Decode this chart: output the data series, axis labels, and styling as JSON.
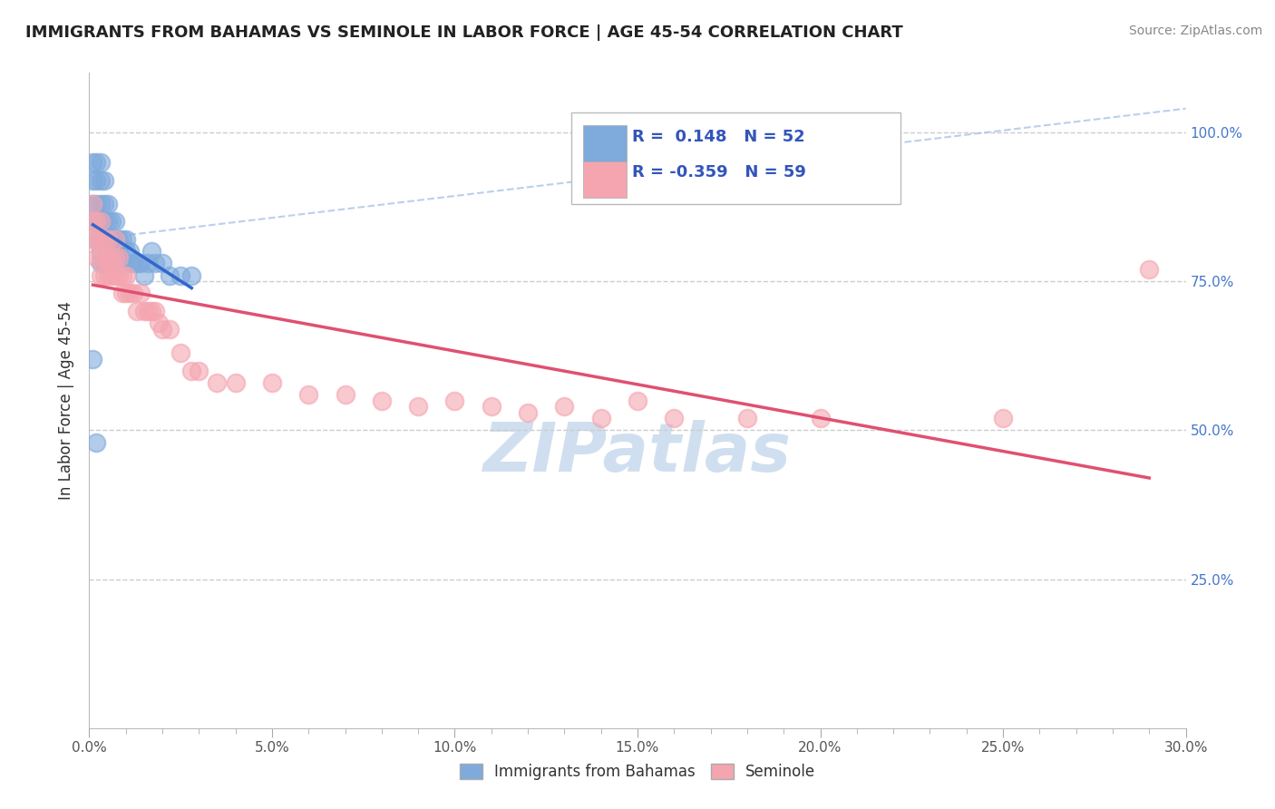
{
  "title": "IMMIGRANTS FROM BAHAMAS VS SEMINOLE IN LABOR FORCE | AGE 45-54 CORRELATION CHART",
  "source": "Source: ZipAtlas.com",
  "ylabel": "In Labor Force | Age 45-54",
  "xlim": [
    0.0,
    0.3
  ],
  "ylim": [
    0.0,
    1.1
  ],
  "xtick_labels": [
    "0.0%",
    "",
    "",
    "",
    "",
    "5.0%",
    "",
    "",
    "",
    "",
    "10.0%",
    "",
    "",
    "",
    "",
    "15.0%",
    "",
    "",
    "",
    "",
    "20.0%",
    "",
    "",
    "",
    "",
    "25.0%",
    "",
    "",
    "",
    "",
    "30.0%"
  ],
  "xtick_values": [
    0.0,
    0.01,
    0.02,
    0.03,
    0.04,
    0.05,
    0.06,
    0.07,
    0.08,
    0.09,
    0.1,
    0.11,
    0.12,
    0.13,
    0.14,
    0.15,
    0.16,
    0.17,
    0.18,
    0.19,
    0.2,
    0.21,
    0.22,
    0.23,
    0.24,
    0.25,
    0.26,
    0.27,
    0.28,
    0.29,
    0.3
  ],
  "ytick_labels_right": [
    "25.0%",
    "50.0%",
    "75.0%",
    "100.0%"
  ],
  "ytick_values_right": [
    0.25,
    0.5,
    0.75,
    1.0
  ],
  "R_blue": 0.148,
  "N_blue": 52,
  "R_pink": -0.359,
  "N_pink": 59,
  "blue_color": "#7faadc",
  "pink_color": "#f4a5b0",
  "trend_blue_color": "#3366cc",
  "trend_pink_color": "#e05070",
  "diag_line_color": "#aac4e8",
  "watermark": "ZIPatlas",
  "watermark_color": "#d0dff0",
  "legend_label_blue": "Immigrants from Bahamas",
  "legend_label_pink": "Seminole",
  "blue_x": [
    0.001,
    0.001,
    0.001,
    0.001,
    0.002,
    0.002,
    0.002,
    0.002,
    0.002,
    0.003,
    0.003,
    0.003,
    0.003,
    0.003,
    0.003,
    0.003,
    0.004,
    0.004,
    0.004,
    0.004,
    0.004,
    0.005,
    0.005,
    0.005,
    0.005,
    0.006,
    0.006,
    0.006,
    0.007,
    0.007,
    0.007,
    0.008,
    0.008,
    0.009,
    0.009,
    0.01,
    0.01,
    0.011,
    0.011,
    0.012,
    0.013,
    0.014,
    0.015,
    0.016,
    0.017,
    0.018,
    0.02,
    0.022,
    0.025,
    0.028,
    0.001,
    0.002
  ],
  "blue_y": [
    0.95,
    0.92,
    0.88,
    0.85,
    0.95,
    0.92,
    0.88,
    0.85,
    0.82,
    0.95,
    0.92,
    0.88,
    0.85,
    0.82,
    0.8,
    0.78,
    0.92,
    0.88,
    0.85,
    0.82,
    0.78,
    0.88,
    0.85,
    0.82,
    0.8,
    0.85,
    0.82,
    0.8,
    0.85,
    0.82,
    0.8,
    0.82,
    0.8,
    0.82,
    0.78,
    0.82,
    0.8,
    0.8,
    0.78,
    0.78,
    0.78,
    0.78,
    0.76,
    0.78,
    0.8,
    0.78,
    0.78,
    0.76,
    0.76,
    0.76,
    0.62,
    0.48
  ],
  "pink_x": [
    0.001,
    0.001,
    0.001,
    0.002,
    0.002,
    0.002,
    0.003,
    0.003,
    0.003,
    0.003,
    0.004,
    0.004,
    0.004,
    0.005,
    0.005,
    0.005,
    0.006,
    0.006,
    0.007,
    0.007,
    0.007,
    0.008,
    0.008,
    0.009,
    0.009,
    0.01,
    0.01,
    0.011,
    0.012,
    0.013,
    0.014,
    0.015,
    0.016,
    0.017,
    0.018,
    0.019,
    0.02,
    0.022,
    0.025,
    0.028,
    0.03,
    0.035,
    0.04,
    0.05,
    0.06,
    0.07,
    0.08,
    0.09,
    0.1,
    0.11,
    0.12,
    0.13,
    0.14,
    0.15,
    0.16,
    0.18,
    0.2,
    0.25,
    0.29
  ],
  "pink_y": [
    0.88,
    0.85,
    0.82,
    0.85,
    0.82,
    0.79,
    0.85,
    0.82,
    0.79,
    0.76,
    0.82,
    0.79,
    0.76,
    0.82,
    0.79,
    0.76,
    0.79,
    0.76,
    0.82,
    0.79,
    0.76,
    0.79,
    0.76,
    0.76,
    0.73,
    0.76,
    0.73,
    0.73,
    0.73,
    0.7,
    0.73,
    0.7,
    0.7,
    0.7,
    0.7,
    0.68,
    0.67,
    0.67,
    0.63,
    0.6,
    0.6,
    0.58,
    0.58,
    0.58,
    0.56,
    0.56,
    0.55,
    0.54,
    0.55,
    0.54,
    0.53,
    0.54,
    0.52,
    0.55,
    0.52,
    0.52,
    0.52,
    0.52,
    0.77
  ],
  "diag_line_x": [
    0.0,
    0.3
  ],
  "diag_line_y": [
    0.82,
    1.04
  ]
}
